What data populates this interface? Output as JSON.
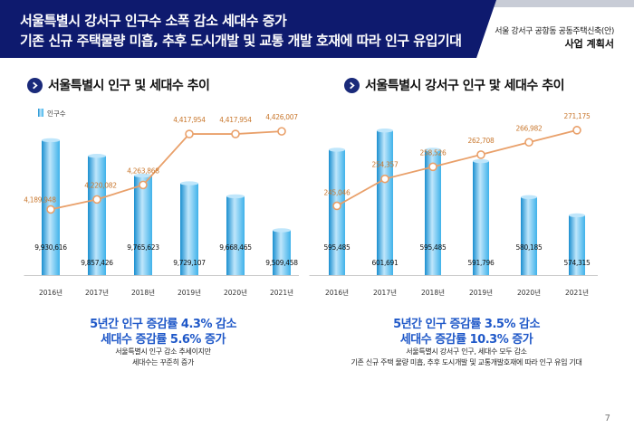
{
  "header": {
    "title_line1": "서울특별시 강서구 인구수 소폭 감소 세대수 증가",
    "title_line2": "기존 신규 주택물량 미흡, 추후 도시개발 및 교통 개발 호재에 따라 인구 유입기대",
    "project_name": "서울 강서구 공항동 공동주택신축(안)",
    "doc_type": "사업 계획서"
  },
  "left_section": {
    "title": "서울특별시 인구 및 세대수 추이",
    "legend": "인구수",
    "summary_line1": "5년간 인구 증감률 4.3% 감소",
    "summary_line2": "세대수 증감률 5.6% 증가",
    "desc_line1": "서울특별시 인구 감소 추세이지만",
    "desc_line2": "세대수는 꾸준히 증가"
  },
  "right_section": {
    "title": "서울특별시 강서구 인구 맟 세대수 추이",
    "summary_line1": "5년간 인구 증감률 3.5% 감소",
    "summary_line2": "세대수 증감률 10.3% 증가",
    "desc_line1": "서울특별시 강서구 인구, 세대수 모두 감소",
    "desc_line2": "기존 신규 주택 물량 미흡, 추후 도시개발 및 교통개발호재에 따라 인구 유입 기대"
  },
  "page_number": "7",
  "colors": {
    "header_bg": "#0e1a6e",
    "bar_light": "#bfe6fb",
    "bar_mid": "#3fb2ea",
    "bar_dark": "#1a8fd0",
    "line": "#e9a06a",
    "line_label": "#c9782f",
    "summary": "#1f58c8"
  },
  "chart_data": [
    {
      "type": "bar",
      "categories": [
        "2016년",
        "2017년",
        "2018년",
        "2019년",
        "2020년",
        "2021년"
      ],
      "series": [
        {
          "name": "인구수",
          "values": [
            9930616,
            9857426,
            9765623,
            9729107,
            9668465,
            9509458
          ]
        },
        {
          "values": [
            4189948,
            4220082,
            4263868,
            4417954,
            4417954,
            4426007
          ]
        }
      ],
      "bar_labels": [
        "9,930,616",
        "9,857,426",
        "9,765,623",
        "9,729,107",
        "9,668,465",
        "9,509,458"
      ],
      "line_labels": [
        "4,189,948",
        "4,220,082",
        "4,263,868",
        "4,417,954",
        "4,417,954",
        "4,426,007"
      ],
      "title": "서울특별시 인구 및 세대수 추이",
      "legend": "top-left"
    },
    {
      "type": "bar",
      "categories": [
        "2016년",
        "2017년",
        "2018년",
        "2019년",
        "2020년",
        "2021년"
      ],
      "series": [
        {
          "values": [
            595485,
            601691,
            595485,
            591796,
            580185,
            574315
          ]
        },
        {
          "values": [
            245046,
            254357,
            258526,
            262708,
            266982,
            271175
          ]
        }
      ],
      "bar_labels": [
        "595,485",
        "601,691",
        "595,485",
        "591,796",
        "580,185",
        "574,315"
      ],
      "line_labels": [
        "245,046",
        "254,357",
        "258,526",
        "262,708",
        "266,982",
        "271,175"
      ],
      "title": "서울특별시 강서구 인구 맟 세대수 추이"
    }
  ]
}
